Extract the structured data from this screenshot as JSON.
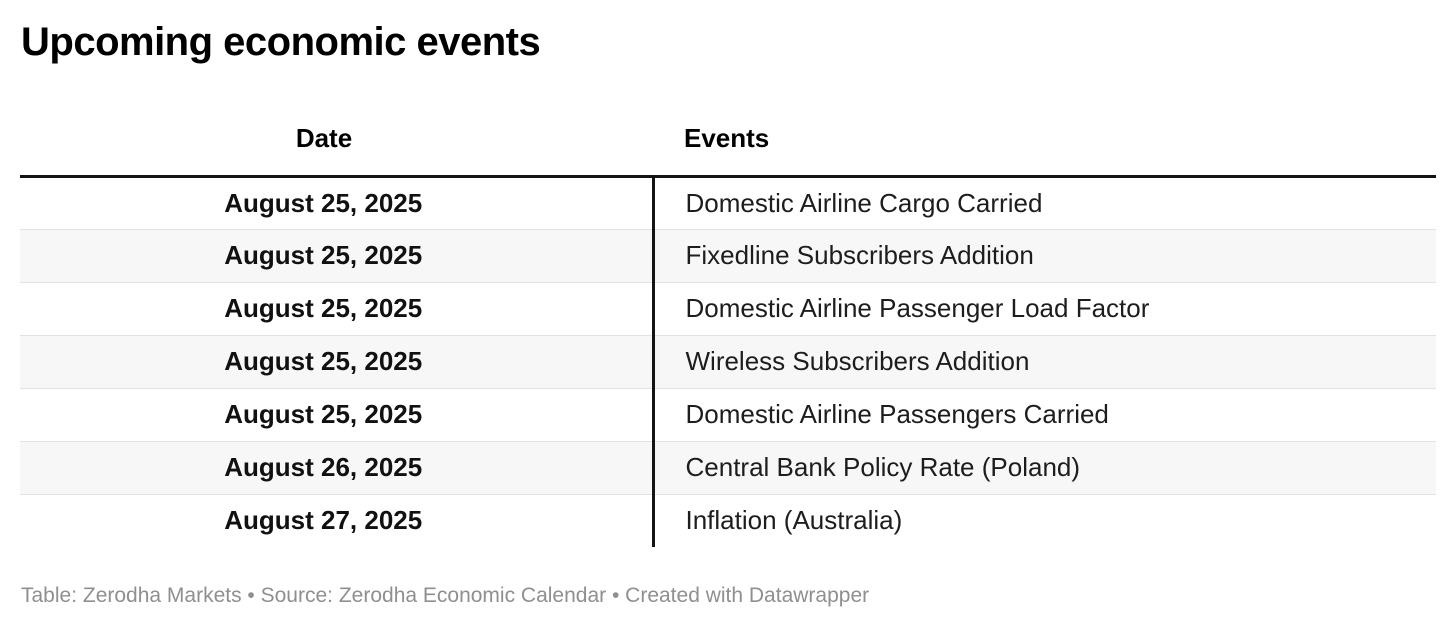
{
  "title": "Upcoming economic events",
  "table": {
    "columns": [
      {
        "id": "date",
        "label": "Date"
      },
      {
        "id": "events",
        "label": "Events"
      }
    ],
    "rows": [
      {
        "date": "August 25, 2025",
        "event": "Domestic Airline Cargo Carried"
      },
      {
        "date": "August 25, 2025",
        "event": "Fixedline Subscribers Addition"
      },
      {
        "date": "August 25, 2025",
        "event": "Domestic Airline Passenger Load Factor"
      },
      {
        "date": "August 25, 2025",
        "event": "Wireless Subscribers Addition"
      },
      {
        "date": "August 25, 2025",
        "event": "Domestic Airline Passengers Carried"
      },
      {
        "date": "August 26, 2025",
        "event": "Central Bank Policy Rate (Poland)"
      },
      {
        "date": "August 27, 2025",
        "event": "Inflation (Australia)"
      }
    ]
  },
  "footer": {
    "text": "Table: Zerodha Markets • Source: Zerodha Economic Calendar • Created with Datawrapper"
  },
  "colors": {
    "title_text": "#000000",
    "body_text": "#1d1d1d",
    "header_border": "#141414",
    "column_divider": "#141414",
    "row_stripe": "#f7f7f7",
    "row_separator": "#e2e2e2",
    "footer_text": "#8f8f8f",
    "background": "#ffffff"
  },
  "chart_data": {
    "type": "table",
    "title": "Upcoming economic events",
    "columns": [
      "Date",
      "Events"
    ],
    "rows": [
      [
        "August 25, 2025",
        "Domestic Airline Cargo Carried"
      ],
      [
        "August 25, 2025",
        "Fixedline Subscribers Addition"
      ],
      [
        "August 25, 2025",
        "Domestic Airline Passenger Load Factor"
      ],
      [
        "August 25, 2025",
        "Wireless Subscribers Addition"
      ],
      [
        "August 25, 2025",
        "Domestic Airline Passengers Carried"
      ],
      [
        "August 26, 2025",
        "Central Bank Policy Rate (Poland)"
      ],
      [
        "August 27, 2025",
        "Inflation (Australia)"
      ]
    ],
    "layout_hints": {
      "date_column_alignment": "center",
      "events_column_alignment": "left",
      "striped_rows": true,
      "thick_header_rule": true,
      "vertical_divider_between_columns": true
    },
    "footer": "Table: Zerodha Markets • Source: Zerodha Economic Calendar • Created with Datawrapper"
  }
}
